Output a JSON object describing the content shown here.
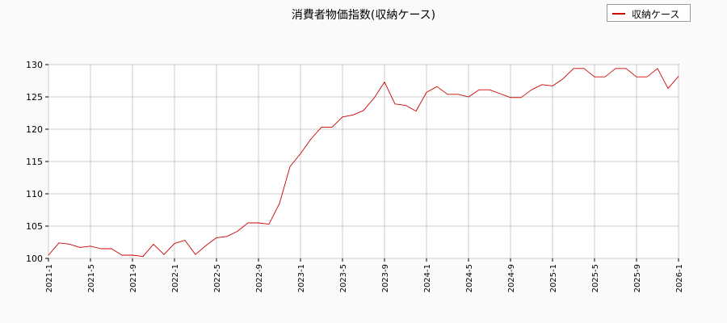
{
  "chart_data": {
    "type": "line",
    "title": "消費者物価指数(収納ケース)",
    "xlabel": "",
    "ylabel": "",
    "ylim": [
      100,
      130
    ],
    "yticks": [
      "100",
      "105",
      "110",
      "115",
      "120",
      "125",
      "130"
    ],
    "xticks": [
      "2021-1",
      "2021-5",
      "2021-9",
      "2022-1",
      "2022-5",
      "2022-9",
      "2023-1",
      "2023-5",
      "2023-9",
      "2024-1",
      "2024-5",
      "2024-9",
      "2025-1",
      "2025-5",
      "2025-9",
      "2026-1"
    ],
    "grid": true,
    "legend_position": "top-right",
    "series": [
      {
        "name": "収納ケース",
        "color": "#cc0000",
        "x": [
          "2021-1",
          "2021-2",
          "2021-3",
          "2021-4",
          "2021-5",
          "2021-6",
          "2021-7",
          "2021-8",
          "2021-9",
          "2021-10",
          "2021-11",
          "2021-12",
          "2022-1",
          "2022-2",
          "2022-3",
          "2022-4",
          "2022-5",
          "2022-6",
          "2022-7",
          "2022-8",
          "2022-9",
          "2022-10",
          "2022-11",
          "2022-12",
          "2023-1",
          "2023-2",
          "2023-3",
          "2023-4",
          "2023-5",
          "2023-6",
          "2023-7",
          "2023-8",
          "2023-9",
          "2023-10",
          "2023-11",
          "2023-12",
          "2024-1",
          "2024-2",
          "2024-3",
          "2024-4",
          "2024-5",
          "2024-6",
          "2024-7",
          "2024-8",
          "2024-9",
          "2024-10",
          "2024-11",
          "2024-12",
          "2025-1",
          "2025-2",
          "2025-3",
          "2025-4",
          "2025-5",
          "2025-6",
          "2025-7",
          "2025-8",
          "2025-9",
          "2025-10",
          "2025-11",
          "2025-12",
          "2026-1"
        ],
        "values": [
          100.5,
          102.4,
          102.2,
          101.7,
          101.9,
          101.5,
          101.5,
          100.5,
          100.5,
          100.3,
          102.2,
          100.6,
          102.3,
          102.8,
          100.6,
          102.0,
          103.2,
          103.4,
          104.2,
          105.5,
          105.5,
          105.3,
          108.5,
          114.2,
          116.2,
          118.5,
          120.3,
          120.3,
          121.9,
          122.2,
          122.9,
          124.8,
          127.3,
          123.9,
          123.7,
          122.8,
          125.7,
          126.6,
          125.4,
          125.4,
          125.0,
          126.1,
          126.1,
          125.5,
          124.9,
          124.9,
          126.1,
          126.9,
          126.7,
          127.8,
          129.4,
          129.4,
          128.1,
          128.1,
          129.4,
          129.4,
          128.1,
          128.1,
          129.4,
          126.3,
          128.2
        ]
      }
    ]
  }
}
